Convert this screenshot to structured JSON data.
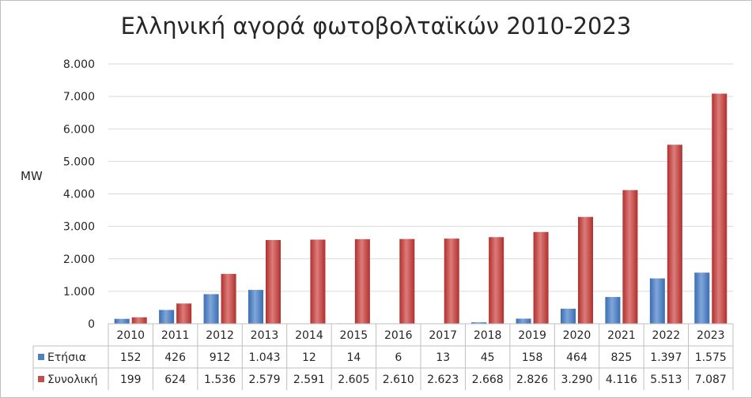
{
  "chart_data": {
    "type": "bar",
    "title": "Ελληνική αγορά φωτοβολταϊκών 2010-2023",
    "ylabel": "MW",
    "ylim": [
      0,
      8000
    ],
    "yticks": [
      "0",
      "1.000",
      "2.000",
      "3.000",
      "4.000",
      "5.000",
      "6.000",
      "7.000",
      "8.000"
    ],
    "ytick_values": [
      0,
      1000,
      2000,
      3000,
      4000,
      5000,
      6000,
      7000,
      8000
    ],
    "grid": true,
    "legend": "data-table",
    "categories": [
      "2010",
      "2011",
      "2012",
      "2013",
      "2014",
      "2015",
      "2016",
      "2017",
      "2018",
      "2019",
      "2020",
      "2021",
      "2022",
      "2023"
    ],
    "series": [
      {
        "name": "Ετήσια",
        "color": "#4f81bd",
        "values": [
          152,
          426,
          912,
          1043,
          12,
          14,
          6,
          13,
          45,
          158,
          464,
          825,
          1397,
          1575
        ],
        "labels": [
          "152",
          "426",
          "912",
          "1.043",
          "12",
          "14",
          "6",
          "13",
          "45",
          "158",
          "464",
          "825",
          "1.397",
          "1.575"
        ]
      },
      {
        "name": "Συνολική",
        "color": "#c0504d",
        "values": [
          199,
          624,
          1536,
          2579,
          2591,
          2605,
          2610,
          2623,
          2668,
          2826,
          3290,
          4116,
          5513,
          7087
        ],
        "labels": [
          "199",
          "624",
          "1.536",
          "2.579",
          "2.591",
          "2.605",
          "2.610",
          "2.623",
          "2.668",
          "2.826",
          "3.290",
          "4.116",
          "5.513",
          "7.087"
        ]
      }
    ]
  }
}
